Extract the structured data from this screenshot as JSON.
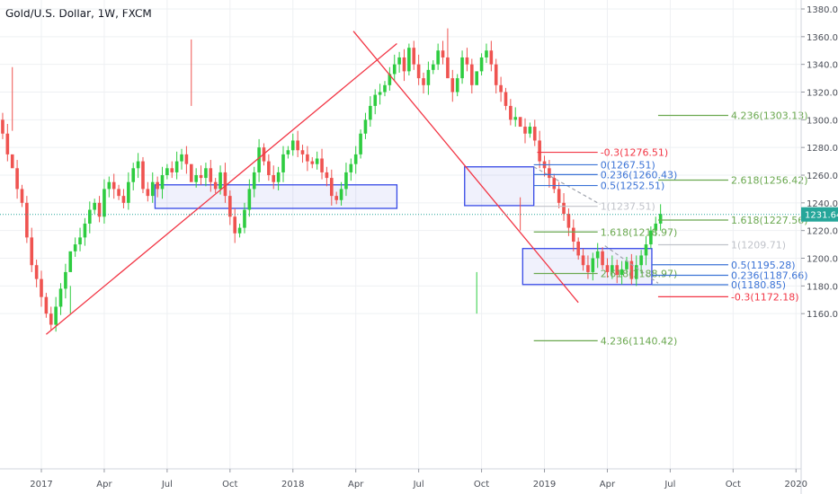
{
  "chart_data": {
    "type": "candlestick",
    "title": "Gold/U.S. Dollar, 1W, FXCM",
    "xlabel": "",
    "ylabel": "",
    "ylim": [
      1150,
      1385
    ],
    "grid": true,
    "y_ticks": [
      1160,
      1180,
      1200,
      1220,
      1240,
      1260,
      1280,
      1300,
      1320,
      1340,
      1360,
      1380
    ],
    "y_tick_labels": [
      "1160.00",
      "1180.00",
      "1200.00",
      "1220.00",
      "1240.00",
      "1260.00",
      "1280.00",
      "1300.00",
      "1320.00",
      "1340.00",
      "1360.00",
      "1380.00"
    ],
    "x_ticks": [
      {
        "label": "2017",
        "week": 0
      },
      {
        "label": "Apr",
        "week": 13
      },
      {
        "label": "Jul",
        "week": 26
      },
      {
        "label": "Oct",
        "week": 39
      },
      {
        "label": "2018",
        "week": 52
      },
      {
        "label": "Apr",
        "week": 65
      },
      {
        "label": "Jul",
        "week": 78
      },
      {
        "label": "Oct",
        "week": 91
      },
      {
        "label": "2019",
        "week": 104
      },
      {
        "label": "Apr",
        "week": 117
      },
      {
        "label": "Jul",
        "week": 130
      },
      {
        "label": "Oct",
        "week": 143
      },
      {
        "label": "2020",
        "week": 156
      }
    ],
    "x_range_weeks": [
      -10,
      164
    ],
    "current_price": {
      "value": 1231.64,
      "label": "1231.64"
    },
    "closes": [
      1300,
      1290,
      1275,
      1265,
      1250,
      1240,
      1215,
      1195,
      1185,
      1172,
      1160,
      1152,
      1165,
      1178,
      1190,
      1205,
      1210,
      1215,
      1225,
      1235,
      1240,
      1230,
      1250,
      1255,
      1250,
      1245,
      1240,
      1255,
      1265,
      1270,
      1250,
      1245,
      1255,
      1250,
      1260,
      1265,
      1262,
      1270,
      1275,
      1268,
      1255,
      1260,
      1258,
      1265,
      1255,
      1250,
      1262,
      1245,
      1230,
      1218,
      1222,
      1235,
      1250,
      1262,
      1280,
      1270,
      1260,
      1255,
      1262,
      1275,
      1278,
      1285,
      1278,
      1275,
      1270,
      1268,
      1272,
      1262,
      1258,
      1245,
      1242,
      1250,
      1262,
      1268,
      1275,
      1290,
      1300,
      1310,
      1318,
      1320,
      1325,
      1333,
      1340,
      1345,
      1335,
      1352,
      1340,
      1330,
      1325,
      1336,
      1340,
      1350,
      1345,
      1330,
      1320,
      1330,
      1345,
      1340,
      1325,
      1335,
      1345,
      1350,
      1340,
      1325,
      1320,
      1310,
      1300,
      1302,
      1295,
      1290,
      1295,
      1285,
      1270,
      1265,
      1258,
      1250,
      1240,
      1232,
      1222,
      1212,
      1202,
      1195,
      1190,
      1200,
      1205,
      1195,
      1190,
      1195,
      1188,
      1192,
      1198,
      1185,
      1195,
      1202,
      1210,
      1220,
      1225,
      1232
    ],
    "key_candles": [
      {
        "week": -6,
        "high": 1338,
        "low": 1292
      },
      {
        "week": 6,
        "high": 1180,
        "low": 1160
      },
      {
        "week": 31,
        "high": 1358,
        "low": 1310
      },
      {
        "week": 84,
        "high": 1366,
        "low": 1330
      },
      {
        "week": 90,
        "high": 1190,
        "low": 1160
      },
      {
        "week": 99,
        "high": 1244,
        "low": 1220
      }
    ],
    "trendlines": [
      {
        "name": "support-trendline",
        "from": [
          1,
          1145
        ],
        "to": [
          73.5,
          1355
        ],
        "color": "#f23645"
      },
      {
        "name": "resistance-trendline",
        "from": [
          64.5,
          1364
        ],
        "to": [
          111,
          1168
        ],
        "color": "#f23645"
      }
    ],
    "zones": [
      {
        "name": "zone-2017",
        "x": [
          23.5,
          73.5
        ],
        "y": [
          1236,
          1253
        ],
        "color": "#3548e6"
      },
      {
        "name": "zone-upper",
        "x": [
          87.5,
          101.8
        ],
        "y": [
          1238,
          1266
        ],
        "color": "#3548e6"
      },
      {
        "name": "zone-lower",
        "x": [
          99.5,
          126.2
        ],
        "y": [
          1181,
          1207
        ],
        "color": "#3548e6"
      }
    ],
    "dashed_lines": [
      {
        "name": "dashed-projection-upper",
        "from": [
          101.8,
          1266
        ],
        "to": [
          115.5,
          1239
        ],
        "color": "#a0a4ae"
      },
      {
        "name": "dashed-projection-lower",
        "from": [
          116.5,
          1209
        ],
        "to": [
          127.5,
          1182
        ],
        "color": "#a0a4ae"
      }
    ],
    "fib_levels": [
      {
        "label": "-0.3(1276.51)",
        "value": 1276.51,
        "x": [
          102.5,
          115
        ],
        "color": "#f23645"
      },
      {
        "label": "0(1267.51)",
        "value": 1267.51,
        "x": [
          101.8,
          115
        ],
        "color": "#3b73d6"
      },
      {
        "label": "0.236(1260.43)",
        "value": 1260.43,
        "x": [
          101.8,
          115
        ],
        "color": "#3b73d6"
      },
      {
        "label": "0.5(1252.51)",
        "value": 1252.51,
        "x": [
          101.8,
          115
        ],
        "color": "#3b73d6"
      },
      {
        "label": "1(1237.51)",
        "value": 1237.51,
        "x": [
          101.8,
          115
        ],
        "color": "#c0c3ca"
      },
      {
        "label": "1.618(1218.97)",
        "value": 1218.97,
        "x": [
          101.8,
          115
        ],
        "color": "#6aa84f"
      },
      {
        "label": "2.618(1188.97)",
        "value": 1188.97,
        "x": [
          101.8,
          115
        ],
        "color": "#6aa84f"
      },
      {
        "label": "4.236(1140.42)",
        "value": 1140.42,
        "x": [
          101.8,
          115
        ],
        "color": "#6aa84f"
      },
      {
        "label": "4.236(1303.13)",
        "value": 1303.13,
        "x": [
          127.5,
          142
        ],
        "color": "#6aa84f"
      },
      {
        "label": "2.618(1256.42)",
        "value": 1256.42,
        "x": [
          127.5,
          142
        ],
        "color": "#6aa84f"
      },
      {
        "label": "1.618(1227.56)",
        "value": 1227.56,
        "x": [
          127.5,
          142
        ],
        "color": "#6aa84f"
      },
      {
        "label": "1(1209.71)",
        "value": 1209.71,
        "x": [
          127.5,
          142
        ],
        "color": "#c0c3ca"
      },
      {
        "label": "0.5(1195.28)",
        "value": 1195.28,
        "x": [
          126.2,
          142
        ],
        "color": "#3b73d6"
      },
      {
        "label": "0.236(1187.66)",
        "value": 1187.66,
        "x": [
          126.2,
          142
        ],
        "color": "#3b73d6"
      },
      {
        "label": "0(1180.85)",
        "value": 1180.85,
        "x": [
          126.2,
          142
        ],
        "color": "#3b73d6"
      },
      {
        "label": "-0.3(1172.18)",
        "value": 1172.18,
        "x": [
          127.5,
          142
        ],
        "color": "#f23645"
      }
    ],
    "colors": {
      "up": "#26a69a",
      "up_bright": "#2ecc40",
      "down": "#ef5350",
      "grid": "#eef0f3",
      "axis_text": "#4a4e57",
      "price_tag": "#26a69a"
    }
  }
}
